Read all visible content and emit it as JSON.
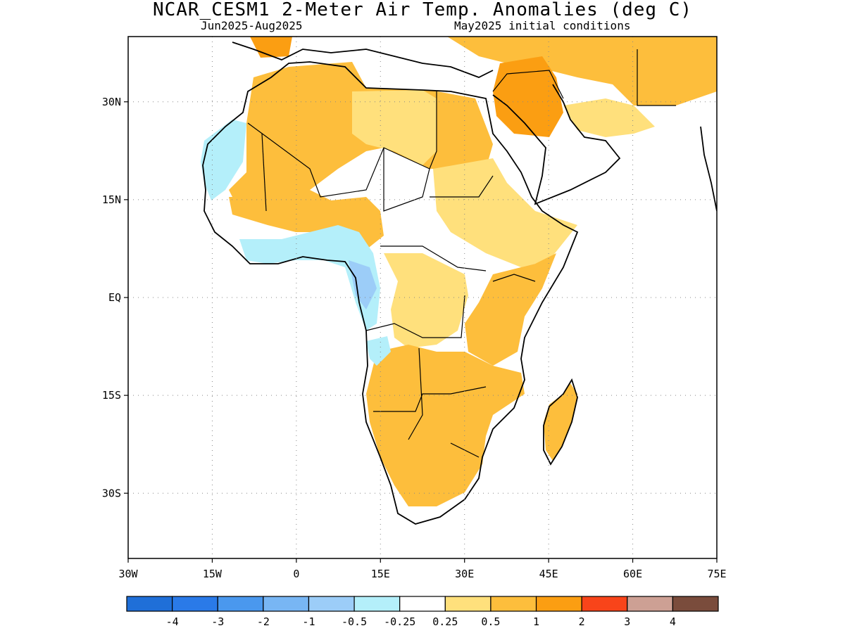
{
  "title": "NCAR_CESM1 2-Meter Air Temp. Anomalies (deg C)",
  "period": "Jun2025-Aug2025",
  "initial_conditions": "May2025 initial conditions",
  "map": {
    "lon_range": [
      -30,
      75
    ],
    "lat_range": [
      -40,
      40
    ],
    "lon_ticks": [
      {
        "value": -30,
        "label": "30W"
      },
      {
        "value": -15,
        "label": "15W"
      },
      {
        "value": 0,
        "label": "0"
      },
      {
        "value": 15,
        "label": "15E"
      },
      {
        "value": 30,
        "label": "30E"
      },
      {
        "value": 45,
        "label": "45E"
      },
      {
        "value": 60,
        "label": "60E"
      },
      {
        "value": 75,
        "label": "75E"
      }
    ],
    "lat_ticks": [
      {
        "value": 30,
        "label": "30N"
      },
      {
        "value": 15,
        "label": "15N"
      },
      {
        "value": 0,
        "label": "EQ"
      },
      {
        "value": -15,
        "label": "15S"
      },
      {
        "value": -30,
        "label": "30S"
      }
    ],
    "grid": "dotted"
  },
  "colorbar": {
    "colors": [
      "#1f6fd8",
      "#2a7ae8",
      "#4a98ee",
      "#78b6f4",
      "#9ccdf8",
      "#b4effa",
      "#ffffff",
      "#ffe07c",
      "#fdbe3c",
      "#fb9e12",
      "#f8441a",
      "#cda094",
      "#7a4c3c"
    ],
    "labels": [
      "-4",
      "-3",
      "-2",
      "-1",
      "-0.5",
      "-0.25",
      "0.25",
      "0.5",
      "1",
      "2",
      "3",
      "4"
    ]
  }
}
